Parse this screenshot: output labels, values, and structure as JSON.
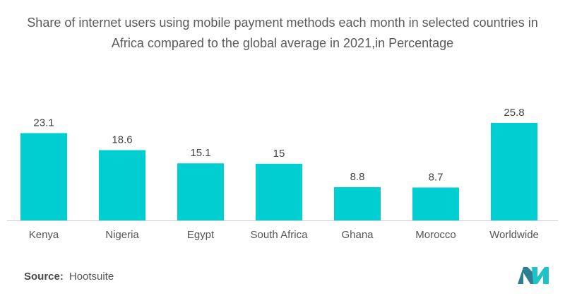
{
  "title_line1": "Share of internet users using mobile payment methods each month in selected countries in",
  "title_line2": "Africa compared to the global average in 2021,in Percentage",
  "source_label": "Source:",
  "source_value": "Hootsuite",
  "colors": {
    "bar": "#00CED1",
    "text": "#555555",
    "axis": "#d0d0d0"
  },
  "chart_data": {
    "type": "bar",
    "title": "Share of internet users using mobile payment methods each month in selected countries in Africa compared to the global average in 2021,in Percentage",
    "categories": [
      "Kenya",
      "Nigeria",
      "Egypt",
      "South Africa",
      "Ghana",
      "Morocco",
      "Worldwide"
    ],
    "values": [
      23.1,
      18.6,
      15.1,
      15,
      8.8,
      8.7,
      25.8
    ],
    "data_labels": [
      "23.1",
      "18.6",
      "15.1",
      "15",
      "8.8",
      "8.7",
      "25.8"
    ],
    "xlabel": "",
    "ylabel": "",
    "ylim": [
      0,
      30
    ],
    "grid": false,
    "legend": "none"
  }
}
